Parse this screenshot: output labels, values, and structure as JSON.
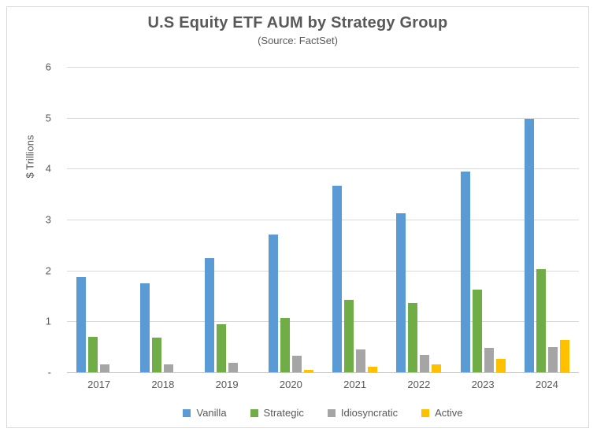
{
  "chart": {
    "title": "U.S Equity ETF AUM by Strategy Group",
    "subtitle": "(Source: FactSet)",
    "y_axis_title": "$ Trillions"
  },
  "colors": {
    "text": "#595959",
    "gridline": "#d9d9d9",
    "axis_line": "#c6c6c6",
    "frame_border": "#d9d9d9",
    "vanilla": "#5b9bd5",
    "strategic": "#70ad47",
    "idiosyncratic": "#a5a5a5",
    "active": "#ffc000"
  },
  "chart_data": {
    "type": "bar",
    "title": "U.S Equity ETF AUM by Strategy Group",
    "subtitle": "(Source: FactSet)",
    "xlabel": "",
    "ylabel": "$ Trillions",
    "ylim": [
      0,
      6
    ],
    "grid": true,
    "legend_position": "bottom",
    "categories": [
      "2017",
      "2018",
      "2019",
      "2020",
      "2021",
      "2022",
      "2023",
      "2024"
    ],
    "series": [
      {
        "name": "Vanilla",
        "color": "#5b9bd5",
        "values": [
          1.87,
          1.74,
          2.25,
          2.7,
          3.67,
          3.12,
          3.95,
          4.98
        ]
      },
      {
        "name": "Strategic",
        "color": "#70ad47",
        "values": [
          0.7,
          0.68,
          0.94,
          1.07,
          1.43,
          1.36,
          1.63,
          2.03
        ]
      },
      {
        "name": "Idiosyncratic",
        "color": "#a5a5a5",
        "values": [
          0.16,
          0.15,
          0.19,
          0.32,
          0.45,
          0.34,
          0.48,
          0.49
        ]
      },
      {
        "name": "Active",
        "color": "#ffc000",
        "values": [
          0,
          0,
          0,
          0.05,
          0.11,
          0.16,
          0.27,
          0.63
        ]
      }
    ],
    "y_ticks": [
      {
        "value": 6,
        "label": "6"
      },
      {
        "value": 5,
        "label": "5"
      },
      {
        "value": 4,
        "label": "4"
      },
      {
        "value": 3,
        "label": "3"
      },
      {
        "value": 2,
        "label": "2"
      },
      {
        "value": 1,
        "label": "1"
      },
      {
        "value": 0,
        "label": "-"
      }
    ]
  }
}
